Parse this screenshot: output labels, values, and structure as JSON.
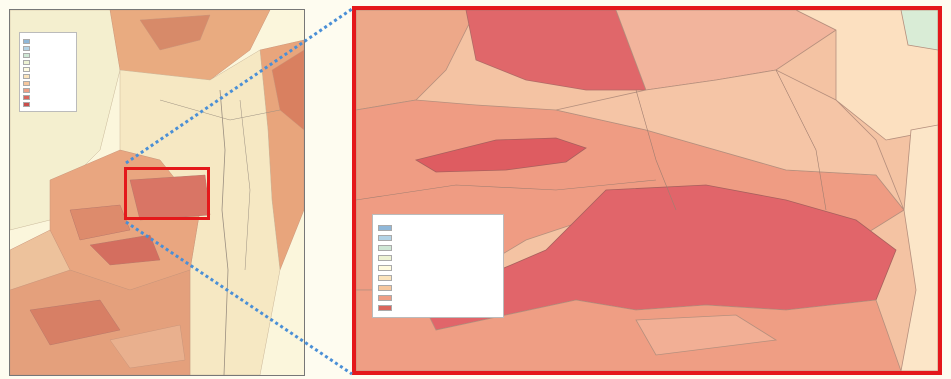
{
  "overview_legend": {
    "title": "",
    "subtitle": "",
    "classes": [
      {
        "label": "",
        "color": "#8fb7d8"
      },
      {
        "label": "",
        "color": "#b3d3e6"
      },
      {
        "label": "",
        "color": "#cfe7d5"
      },
      {
        "label": "",
        "color": "#eef3d4"
      },
      {
        "label": "",
        "color": "#fffbe0"
      },
      {
        "label": "",
        "color": "#fbe4bd"
      },
      {
        "label": "",
        "color": "#f6c79e"
      },
      {
        "label": "",
        "color": "#ee9e85"
      },
      {
        "label": "",
        "color": "#d9655c"
      },
      {
        "label": "",
        "color": "#c94d4a"
      }
    ]
  },
  "zoom_legend": {
    "title": "",
    "classes": [
      {
        "label": "",
        "color": "#8fb7d8"
      },
      {
        "label": "",
        "color": "#b3d3e6"
      },
      {
        "label": "",
        "color": "#cfe7d5"
      },
      {
        "label": "",
        "color": "#eef3d4"
      },
      {
        "label": "",
        "color": "#fffbe0"
      },
      {
        "label": "",
        "color": "#fbe4bd"
      },
      {
        "label": "",
        "color": "#f6c79e"
      },
      {
        "label": "",
        "color": "#ee9e85"
      },
      {
        "label": "",
        "color": "#d9655c"
      }
    ]
  },
  "colors": {
    "highlight_frame": "#e4181b",
    "connector": "#4a8fd6"
  }
}
